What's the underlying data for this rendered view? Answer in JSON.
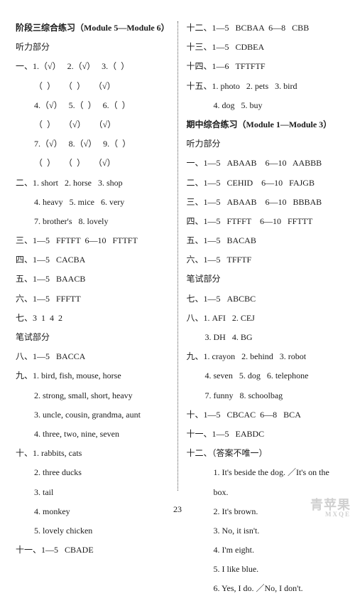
{
  "pageNumber": "23",
  "watermark": {
    "main": "青苹果",
    "sub": "MXQE"
  },
  "left": {
    "title": "阶段三综合练习（Module 5—Module 6）",
    "listenHeading": "听力部分",
    "q1": {
      "rows": [
        "一、1.（√）   2.（√）   3.（  ）",
        "（  ）    （  ）    （√）",
        "4.（√）   5.（  ）   6.（  ）",
        "（  ）    （√）    （√）",
        "7.（√）   8.（√）   9.（  ）",
        "（  ）    （  ）    （√）"
      ]
    },
    "q2": {
      "l1": "二、1. short   2. horse   3. shop",
      "l2": "4. heavy   5. mice   6. very",
      "l3": "7. brother's   8. lovely"
    },
    "q3": "三、1—5   FFTFT  6—10   FTTFT",
    "q4": "四、1—5   CACBA",
    "q5": "五、1—5   BAACB",
    "q6": "六、1—5   FFFTT",
    "q7": "七、3  1  4  2",
    "writeHeading": "笔试部分",
    "q8": "八、1—5   BACCA",
    "q9": {
      "l1": "九、1. bird, fish, mouse, horse",
      "l2": "2. strong, small, short, heavy",
      "l3": "3. uncle, cousin, grandma, aunt",
      "l4": "4. three, two, nine, seven"
    },
    "q10": {
      "l1": "十、1. rabbits, cats",
      "l2": "2. three ducks",
      "l3": "3. tail",
      "l4": "4. monkey",
      "l5": "5. lovely chicken"
    },
    "q11": "十一、1—5   CBADE"
  },
  "right": {
    "q12": "十二、1—5   BCBAA  6—8   CBB",
    "q13": "十三、1—5   CDBEA",
    "q14": "十四、1—6   TFTFTF",
    "q15": {
      "l1": "十五、1. photo   2. pets   3. bird",
      "l2": "4. dog   5. buy"
    },
    "midTitle": "期中综合练习（Module 1—Module 3）",
    "listenHeading": "听力部分",
    "m1": "一、1—5   ABAAB    6—10   AABBB",
    "m2": "二、1—5   CEHID    6—10   FAJGB",
    "m3": "三、1—5   ABAAB    6—10   BBBAB",
    "m4": "四、1—5   FTFFT    6—10   FFTTT",
    "m5": "五、1—5   BACAB",
    "m6": "六、1—5   TFFTF",
    "writeHeading": "笔试部分",
    "m7": "七、1—5   ABCBC",
    "m8": {
      "l1": "八、1. AFI   2. CEJ",
      "l2": "3. DH   4. BG"
    },
    "m9": {
      "l1": "九、1. crayon   2. behind   3. robot",
      "l2": "4. seven   5. dog   6. telephone",
      "l3": "7. funny   8. schoolbag"
    },
    "m10": "十、1—5   CBCAC  6—8   BCA",
    "m11": "十一、1—5   EABDC",
    "m12": {
      "head": "十二、（答案不唯一）",
      "a1a": "1. It's beside the dog. ／It's on the",
      "a1b": "box.",
      "a2": "2. It's brown.",
      "a3": "3. No, it isn't.",
      "a4": "4. I'm eight.",
      "a5": "5. I like blue.",
      "a6": "6. Yes, I do. ／No, I don't."
    }
  }
}
